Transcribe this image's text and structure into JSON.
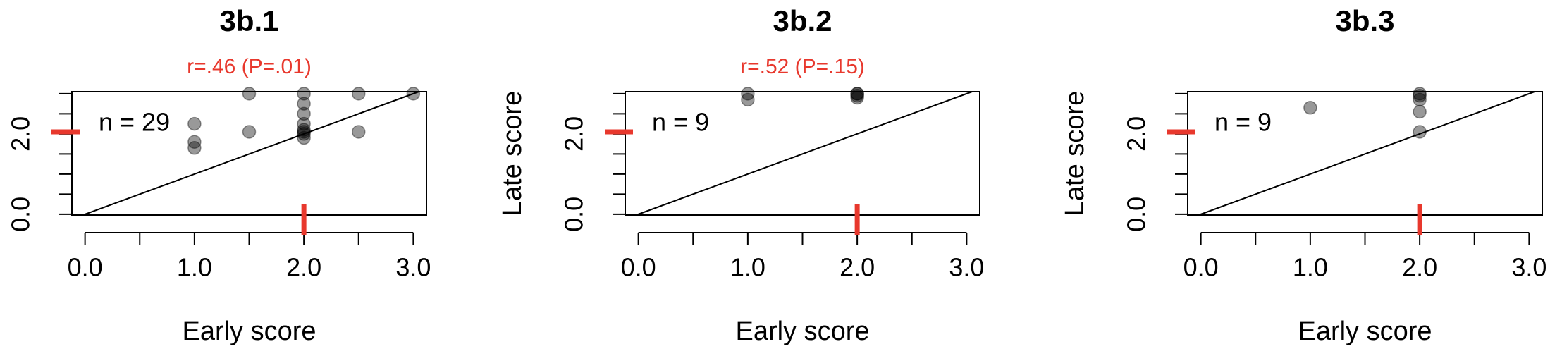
{
  "chart_data": [
    {
      "type": "scatter",
      "title": "3b.1",
      "annotation": "r=.46 (P=.01)",
      "n_label": "n = 29",
      "xlabel": "Early score",
      "x": [
        1,
        1,
        1,
        1.5,
        1.5,
        2,
        2,
        2,
        2,
        2,
        2,
        2,
        2,
        2.5,
        2.5,
        3
      ],
      "y": [
        2.25,
        1.8,
        1.65,
        3,
        2.05,
        3,
        2.75,
        2.5,
        2.25,
        2.1,
        2.0,
        1.9,
        2.05,
        3,
        2.05,
        3
      ],
      "color": "#000000",
      "opacity": 0.4,
      "diagonal": true,
      "x_marker": 2,
      "y_marker": 2.05,
      "marker_color": "#e8382d",
      "xlim": [
        -0.12,
        3.12
      ],
      "ylim": [
        -0.02,
        3.05
      ],
      "xticks": [
        {
          "value": 0,
          "label": "0.0"
        },
        {
          "value": 1,
          "label": "1.0"
        },
        {
          "value": 2,
          "label": "2.0"
        },
        {
          "value": 3,
          "label": "3.0"
        }
      ],
      "xminorticks": [
        0.5,
        1.5,
        2.5
      ],
      "yticks": [
        {
          "value": 0,
          "label": "0.0"
        },
        {
          "value": 2,
          "label": "2.0"
        }
      ],
      "yminorticks": [
        0.5,
        1,
        1.5,
        2.5,
        3
      ]
    },
    {
      "type": "scatter",
      "title": "3b.2",
      "annotation": "r=.52 (P=.15)",
      "n_label": "n = 9",
      "xlabel": "Early score",
      "ylabel": "Late score",
      "x": [
        1,
        1,
        2,
        2,
        2,
        2
      ],
      "y": [
        3.0,
        2.85,
        3.0,
        3.0,
        2.95,
        2.9
      ],
      "color": "#000000",
      "opacity": 0.4,
      "diagonal": true,
      "x_marker": 2,
      "y_marker": 2.05,
      "marker_color": "#e8382d",
      "xlim": [
        -0.12,
        3.12
      ],
      "ylim": [
        -0.02,
        3.05
      ],
      "xticks": [
        {
          "value": 0,
          "label": "0.0"
        },
        {
          "value": 1,
          "label": "1.0"
        },
        {
          "value": 2,
          "label": "2.0"
        },
        {
          "value": 3,
          "label": "3.0"
        }
      ],
      "xminorticks": [
        0.5,
        1.5,
        2.5
      ],
      "yticks": [
        {
          "value": 0,
          "label": "0.0"
        },
        {
          "value": 2,
          "label": "2.0"
        }
      ],
      "yminorticks": [
        0.5,
        1,
        1.5,
        2.5,
        3
      ]
    },
    {
      "type": "scatter",
      "title": "3b.3",
      "n_label": "n = 9",
      "xlabel": "Early score",
      "ylabel": "Late score",
      "x": [
        1,
        2,
        2,
        2,
        2,
        2
      ],
      "y": [
        2.65,
        3.0,
        2.95,
        2.85,
        2.55,
        2.05
      ],
      "color": "#000000",
      "opacity": 0.4,
      "diagonal": true,
      "x_marker": 2,
      "y_marker": 2.05,
      "marker_color": "#e8382d",
      "xlim": [
        -0.12,
        3.12
      ],
      "ylim": [
        -0.02,
        3.05
      ],
      "xticks": [
        {
          "value": 0,
          "label": "0.0"
        },
        {
          "value": 1,
          "label": "1.0"
        },
        {
          "value": 2,
          "label": "2.0"
        },
        {
          "value": 3,
          "label": "3.0"
        }
      ],
      "xminorticks": [
        0.5,
        1.5,
        2.5
      ],
      "yticks": [
        {
          "value": 0,
          "label": "0.0"
        },
        {
          "value": 2,
          "label": "2.0"
        }
      ],
      "yminorticks": [
        0.5,
        1,
        1.5,
        2.5,
        3
      ]
    }
  ]
}
